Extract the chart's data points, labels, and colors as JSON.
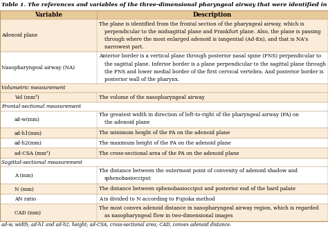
{
  "title": "Table 1. The references and variables of the three-dimensional pharyngeal airway that were identified in this study",
  "header": [
    "Variable",
    "Description"
  ],
  "header_bg": "#e8c99a",
  "row_bg_light": "#faecd8",
  "row_bg_white": "#ffffff",
  "border_color": "#b8956a",
  "title_fontsize": 5.8,
  "header_fontsize": 6.2,
  "cell_fontsize": 5.2,
  "footnote_fontsize": 4.8,
  "rows": [
    {
      "variable": "Adenoid plane",
      "description": "The plane is identified from the frontal section of the pharyngeal airway, which is\nperpendicular to the midsagittal plane and Frankfurt plane. Also, the plane is passing\nthrough where the most enlarged adenoid is tangential (Ad-En), and that is NA's\nnarrowest part.",
      "indent": false,
      "section_header": false,
      "bg": "light",
      "desc_indent_lines": [
        1,
        2,
        3
      ]
    },
    {
      "variable": "Nasopharyngeal airway (NA)",
      "description": "Anterior border is a vertical plane through posterior nasal spine (PNS) perpendicular to\nthe sagittal plane. Inferior border is a plane perpendicular to the sagittal plane through\nthe PNS and lower medial border of the first cervical vertebra. And posterior border is\nposterior wall of the pharynx.",
      "indent": false,
      "section_header": false,
      "bg": "white",
      "desc_indent_lines": [
        1,
        2,
        3
      ]
    },
    {
      "variable": "Volumetric measurement",
      "description": "",
      "indent": false,
      "section_header": true,
      "bg": "light",
      "desc_indent_lines": []
    },
    {
      "variable": "Vol (mm³)",
      "description": "The volume of the nasopharyngeal airway",
      "indent": true,
      "section_header": false,
      "bg": "light",
      "desc_indent_lines": []
    },
    {
      "variable": "Frontal-sectional measurement",
      "description": "",
      "indent": false,
      "section_header": true,
      "bg": "white",
      "desc_indent_lines": []
    },
    {
      "variable": "ad-w(mm)",
      "description": "The greatest width in direction of left-to-right of the pharyngeal airway (PA) on\nthe adenoid plane",
      "indent": true,
      "section_header": false,
      "bg": "white",
      "desc_indent_lines": [
        1
      ]
    },
    {
      "variable": "ad-h1(mm)",
      "description": "The minimum height of the PA on the adenoid plane",
      "indent": true,
      "section_header": false,
      "bg": "light",
      "desc_indent_lines": []
    },
    {
      "variable": "ad-h2(mm)",
      "description": "The maximum height of the PA on the adenoid plane",
      "indent": true,
      "section_header": false,
      "bg": "white",
      "desc_indent_lines": []
    },
    {
      "variable": "ad-CSA (mm²)",
      "description": "The cross-sectional area of the PA on the adenoid plane",
      "indent": true,
      "section_header": false,
      "bg": "light",
      "desc_indent_lines": []
    },
    {
      "variable": "Sagittal-sectional measurement",
      "description": "",
      "indent": false,
      "section_header": true,
      "bg": "white",
      "desc_indent_lines": []
    },
    {
      "variable": "A (mm)",
      "description": "The distance between the outermost point of convexity of adenoid shadow and\nsphenobasiocciput",
      "indent": true,
      "section_header": false,
      "bg": "white",
      "desc_indent_lines": [
        1
      ]
    },
    {
      "variable": "N (mm)",
      "description": "The distance between sphenobasiocciput and posterior end of the hard palate",
      "indent": true,
      "section_header": false,
      "bg": "light",
      "desc_indent_lines": []
    },
    {
      "variable": "AN ratio",
      "description": "A is divided to N according to Fujioka method",
      "indent": true,
      "section_header": false,
      "bg": "white",
      "desc_indent_lines": []
    },
    {
      "variable": "CAD (mm)",
      "description": "The most convex adenoid distance in nasopharyngeal airway region, which is regarded\nas nasopharyngeal flow in two-dimensional images",
      "indent": true,
      "section_header": false,
      "bg": "light",
      "desc_indent_lines": [
        1
      ]
    }
  ],
  "footnote": "ad-w, width; ad-h1 and ad-h2, height; ad-CSA, cross-sectional area; CAD, convex adenoid distance.",
  "col_split": 0.295
}
